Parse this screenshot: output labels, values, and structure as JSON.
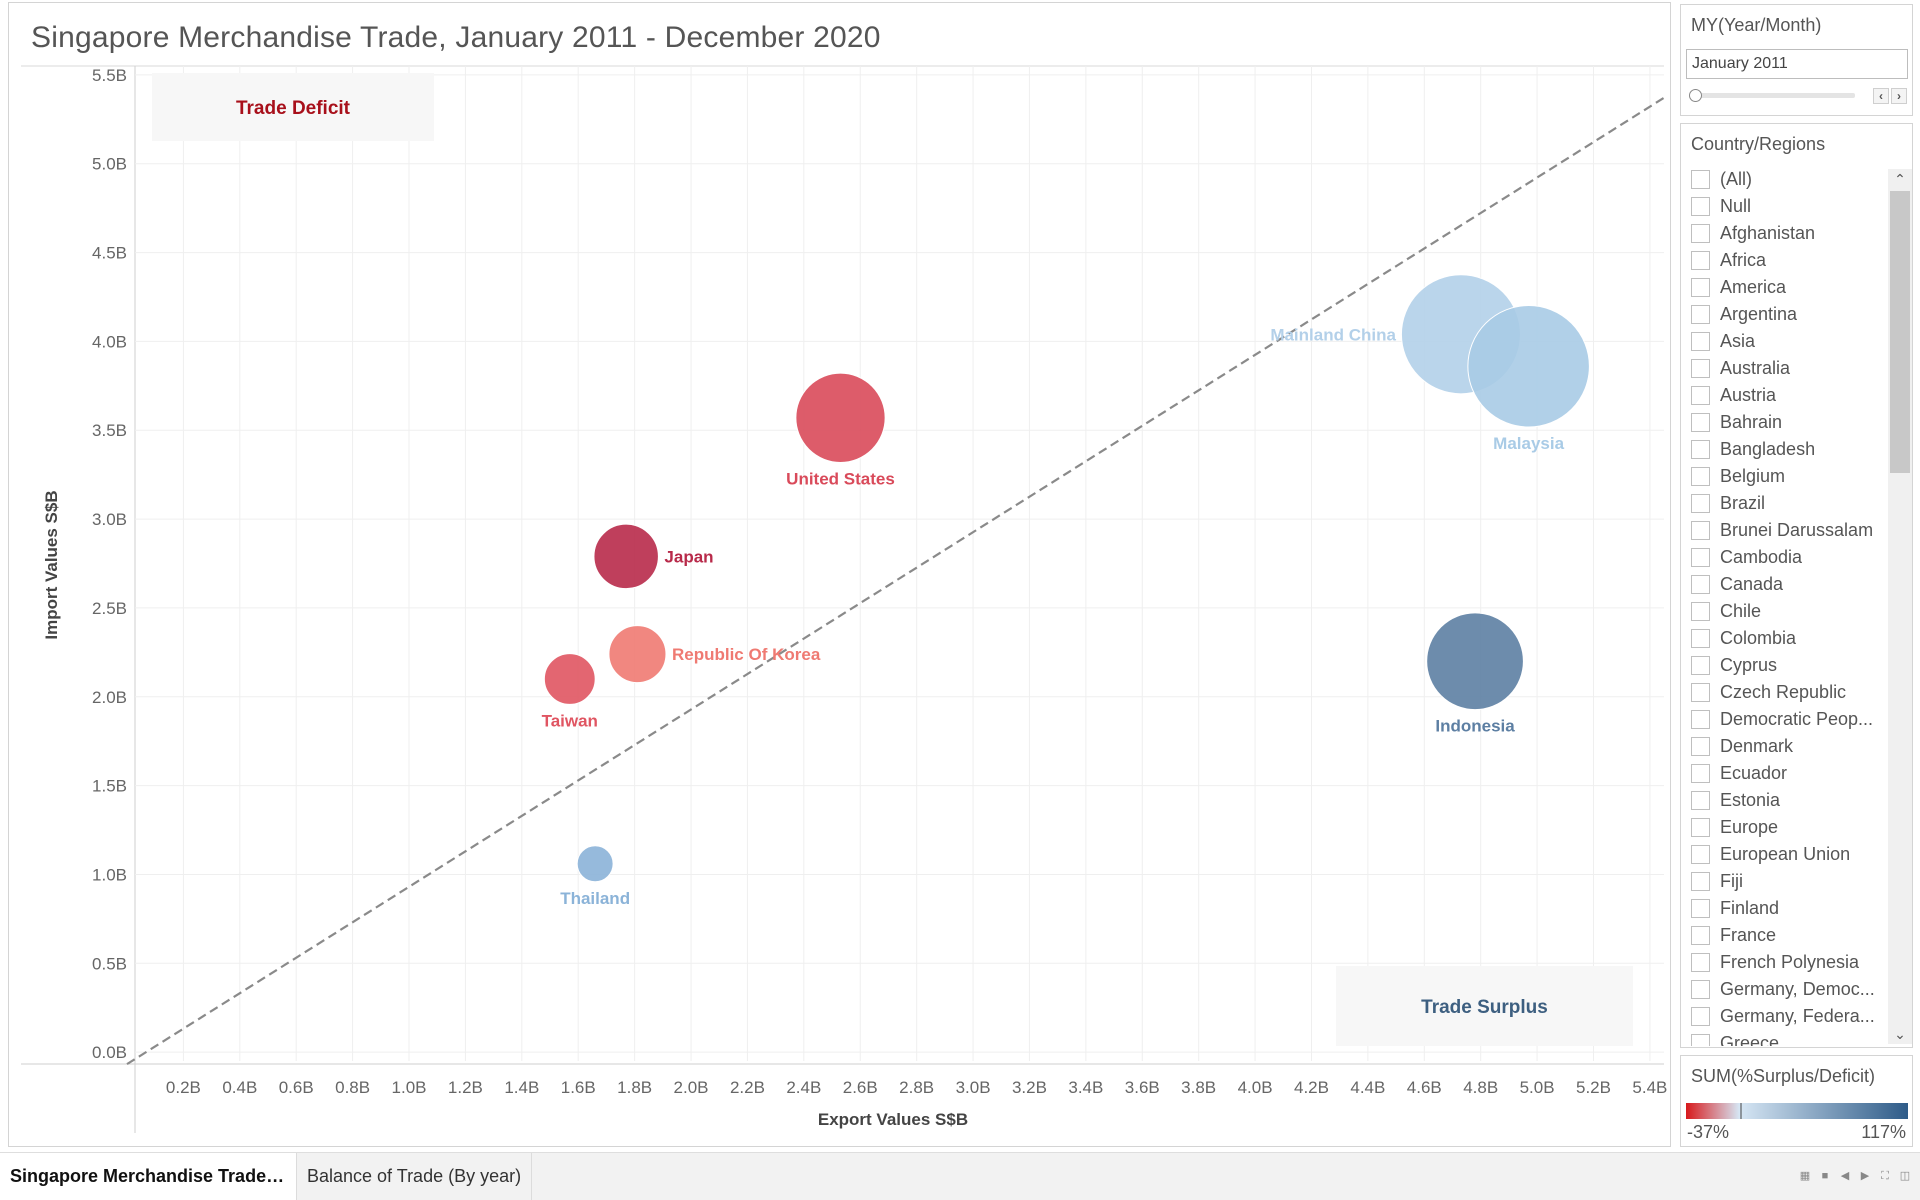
{
  "dashboard": {
    "title": "Singapore Merchandise Trade, January 2011 - December 2020"
  },
  "chart_data": {
    "type": "scatter",
    "variant": "bubble",
    "xlabel": "Export Values S$B",
    "ylabel": "Import Values S$B",
    "xlim": [
      0,
      5.45
    ],
    "ylim": [
      -0.05,
      5.55
    ],
    "x_ticks": [
      "0.2B",
      "0.4B",
      "0.6B",
      "0.8B",
      "1.0B",
      "1.2B",
      "1.4B",
      "1.6B",
      "1.8B",
      "2.0B",
      "2.2B",
      "2.4B",
      "2.6B",
      "2.8B",
      "3.0B",
      "3.2B",
      "3.4B",
      "3.6B",
      "3.8B",
      "4.0B",
      "4.2B",
      "4.4B",
      "4.6B",
      "4.8B",
      "5.0B",
      "5.2B",
      "5.4B"
    ],
    "x_tick_values": [
      0.2,
      0.4,
      0.6,
      0.8,
      1.0,
      1.2,
      1.4,
      1.6,
      1.8,
      2.0,
      2.2,
      2.4,
      2.6,
      2.8,
      3.0,
      3.2,
      3.4,
      3.6,
      3.8,
      4.0,
      4.2,
      4.4,
      4.6,
      4.8,
      5.0,
      5.2,
      5.4
    ],
    "y_ticks": [
      "0.0B",
      "0.5B",
      "1.0B",
      "1.5B",
      "2.0B",
      "2.5B",
      "3.0B",
      "3.5B",
      "4.0B",
      "4.5B",
      "5.0B",
      "5.5B"
    ],
    "y_tick_values": [
      0,
      0.5,
      1.0,
      1.5,
      2.0,
      2.5,
      3.0,
      3.5,
      4.0,
      4.5,
      5.0,
      5.5
    ],
    "grid": true,
    "reference_line": {
      "type": "diagonal",
      "from": [
        0,
        0
      ],
      "to": [
        5.45,
        5.45
      ],
      "style": "dashed"
    },
    "annotations": [
      {
        "text": "Trade Deficit",
        "position": "top-left",
        "color": "#a8101b"
      },
      {
        "text": "Trade Surplus",
        "position": "bottom-right",
        "color": "#3d5f80"
      }
    ],
    "points": [
      {
        "label": "United States",
        "x": 2.53,
        "y": 3.57,
        "size": 7.2,
        "pct": -29,
        "color": "#d94a5a",
        "label_pos": "below"
      },
      {
        "label": "Japan",
        "x": 1.77,
        "y": 2.79,
        "size": 5.2,
        "pct": -37,
        "color": "#b82a4a",
        "label_pos": "right"
      },
      {
        "label": "Republic Of Korea",
        "x": 1.81,
        "y": 2.24,
        "size": 4.6,
        "pct": -19,
        "color": "#ef7a72",
        "label_pos": "right"
      },
      {
        "label": "Taiwan",
        "x": 1.57,
        "y": 2.1,
        "size": 4.1,
        "pct": -25,
        "color": "#e05562",
        "label_pos": "below"
      },
      {
        "label": "Thailand",
        "x": 1.66,
        "y": 1.06,
        "size": 2.9,
        "pct": 57,
        "color": "#8bb3d8",
        "label_pos": "below"
      },
      {
        "label": "Mainland China",
        "x": 4.73,
        "y": 4.04,
        "size": 9.6,
        "pct": 17,
        "color": "#b3d0e9",
        "label_pos": "left"
      },
      {
        "label": "Malaysia",
        "x": 4.97,
        "y": 3.86,
        "size": 9.8,
        "pct": 29,
        "color": "#a9cbe6",
        "label_pos": "below"
      },
      {
        "label": "Indonesia",
        "x": 4.78,
        "y": 2.2,
        "size": 7.8,
        "pct": 117,
        "color": "#5d7fa3",
        "label_pos": "below"
      }
    ]
  },
  "filters": {
    "my_title": "MY(Year/Month)",
    "my_value": "January 2011",
    "prev_glyph": "‹",
    "next_glyph": "›",
    "country_title": "Country/Regions",
    "countries": [
      "(All)",
      "Null",
      "Afghanistan",
      "Africa",
      "America",
      "Argentina",
      "Asia",
      "Australia",
      "Austria",
      "Bahrain",
      "Bangladesh",
      "Belgium",
      "Brazil",
      "Brunei Darussalam",
      "Cambodia",
      "Canada",
      "Chile",
      "Colombia",
      "Cyprus",
      "Czech Republic",
      "Democratic Peop...",
      "Denmark",
      "Ecuador",
      "Estonia",
      "Europe",
      "European Union",
      "Fiji",
      "Finland",
      "France",
      "French Polynesia",
      "Germany, Democ...",
      "Germany, Federa...",
      "Greece"
    ]
  },
  "legend": {
    "title": "SUM(%Surplus/Deficit)",
    "min_label": "-37%",
    "max_label": "117%",
    "color_start": "#d7191c",
    "color_mid": "#d6e6f4",
    "color_end": "#2e5b88"
  },
  "tabs": [
    {
      "label": "Singapore Merchandise Trade,...",
      "active": true
    },
    {
      "label": "Balance of Trade (By year)",
      "active": false
    }
  ]
}
